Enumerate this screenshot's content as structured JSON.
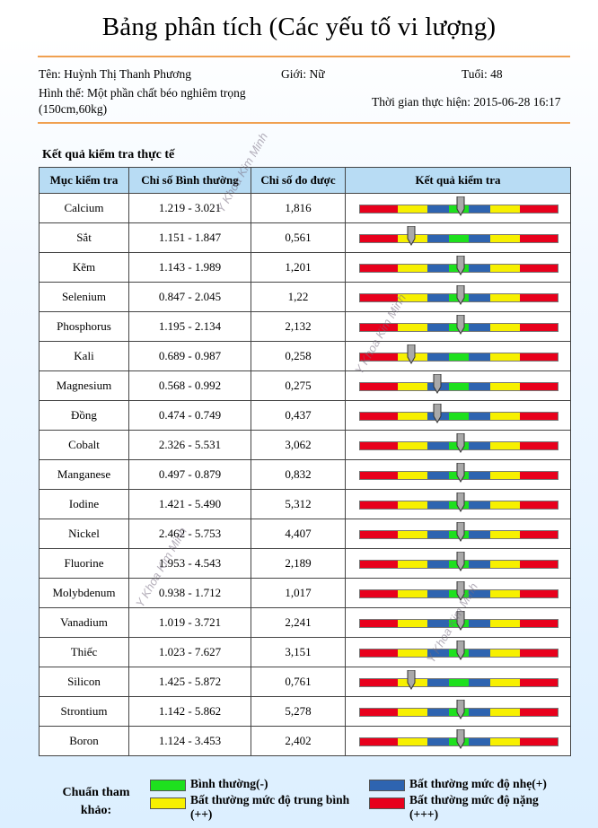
{
  "title": "Bảng phân tích (Các yếu tố vi lượng)",
  "patient": {
    "name": "Tên: Huỳnh Thị Thanh Phương",
    "gender": "Giới: Nữ",
    "age": "Tuổi: 48",
    "body_line1": "Hình thể:  Một phần chất béo nghiêm trọng",
    "body_line2": "(150cm,60kg)",
    "time": "Thời gian thực hiện: 2015-06-28 16:17"
  },
  "section_title": "Kết quả kiểm tra thực tế",
  "table": {
    "headers": [
      "Mục kiểm tra",
      "Chỉ số Bình thường",
      "Chỉ số đo được",
      "Kết quả kiểm tra"
    ],
    "rows": [
      {
        "item": "Calcium",
        "range": "1.219 - 3.021",
        "value": "1,816",
        "marker": 0.51
      },
      {
        "item": "Sắt",
        "range": "1.151 - 1.847",
        "value": "0,561",
        "marker": 0.26
      },
      {
        "item": "Kẽm",
        "range": "1.143 - 1.989",
        "value": "1,201",
        "marker": 0.51
      },
      {
        "item": "Selenium",
        "range": "0.847 - 2.045",
        "value": "1,22",
        "marker": 0.51
      },
      {
        "item": "Phosphorus",
        "range": "1.195 - 2.134",
        "value": "2,132",
        "marker": 0.51
      },
      {
        "item": "Kali",
        "range": "0.689 - 0.987",
        "value": "0,258",
        "marker": 0.26
      },
      {
        "item": "Magnesium",
        "range": "0.568 - 0.992",
        "value": "0,275",
        "marker": 0.39
      },
      {
        "item": "Đồng",
        "range": "0.474 - 0.749",
        "value": "0,437",
        "marker": 0.39
      },
      {
        "item": "Cobalt",
        "range": "2.326 - 5.531",
        "value": "3,062",
        "marker": 0.51
      },
      {
        "item": "Manganese",
        "range": "0.497 - 0.879",
        "value": "0,832",
        "marker": 0.51
      },
      {
        "item": "Iodine",
        "range": "1.421 - 5.490",
        "value": "5,312",
        "marker": 0.51
      },
      {
        "item": "Nickel",
        "range": "2.462 - 5.753",
        "value": "4,407",
        "marker": 0.51
      },
      {
        "item": "Fluorine",
        "range": "1.953 - 4.543",
        "value": "2,189",
        "marker": 0.51
      },
      {
        "item": "Molybdenum",
        "range": "0.938 - 1.712",
        "value": "1,017",
        "marker": 0.51
      },
      {
        "item": "Vanadium",
        "range": "1.019 - 3.721",
        "value": "2,241",
        "marker": 0.51
      },
      {
        "item": "Thiếc",
        "range": "1.023 - 7.627",
        "value": "3,151",
        "marker": 0.51
      },
      {
        "item": "Silicon",
        "range": "1.425 - 5.872",
        "value": "0,761",
        "marker": 0.26
      },
      {
        "item": "Strontium",
        "range": "1.142 - 5.862",
        "value": "5,278",
        "marker": 0.51
      },
      {
        "item": "Boron",
        "range": "1.124 - 3.453",
        "value": "2,402",
        "marker": 0.51
      }
    ]
  },
  "legend": {
    "title": "Chuẩn tham khảo:",
    "normal": "Bình thường(-)",
    "mild": "Bất thường mức độ nhẹ(+)",
    "moderate": "Bất thường mức độ trung bình (++)",
    "severe": "Bất thường mức độ nặng (+++)"
  },
  "watermark": "Y Khoa Kim Minh",
  "colors": {
    "red": "#e8001c",
    "yellow": "#f7f000",
    "blue": "#2e64b0",
    "green": "#1ee01e",
    "header_bg": "#b8dcf4",
    "rule": "#f0a050"
  }
}
